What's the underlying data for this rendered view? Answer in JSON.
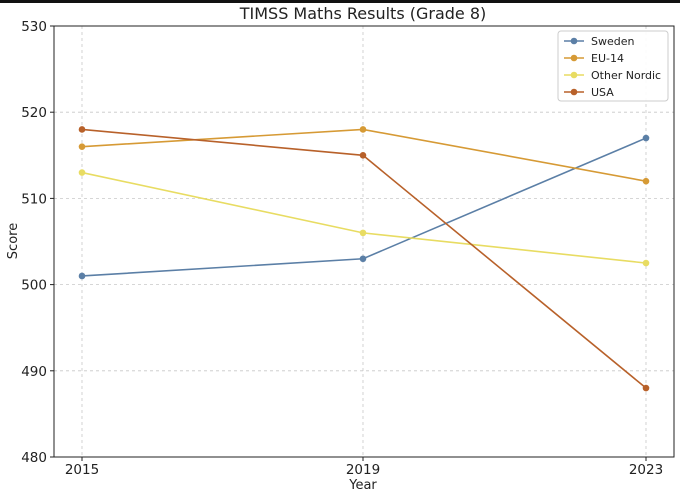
{
  "chart_data": {
    "type": "line",
    "title": "TIMSS Maths Results (Grade 8)",
    "xlabel": "Year",
    "ylabel": "Score",
    "x": [
      2015,
      2019,
      2023
    ],
    "x_tick_labels": [
      "2015",
      "2019",
      "2023"
    ],
    "ylim": [
      480,
      530
    ],
    "y_ticks": [
      480,
      490,
      500,
      510,
      520,
      530
    ],
    "y_tick_labels": [
      "480",
      "490",
      "500",
      "510",
      "520",
      "530"
    ],
    "grid": true,
    "legend_position": "top-right",
    "series": [
      {
        "name": "Sweden",
        "color": "#5b7fa6",
        "values": [
          501,
          503,
          517
        ]
      },
      {
        "name": "EU-14",
        "color": "#d69a35",
        "values": [
          516,
          518,
          512
        ]
      },
      {
        "name": "Other Nordic",
        "color": "#e8dc62",
        "values": [
          513,
          506,
          502.5
        ]
      },
      {
        "name": "USA",
        "color": "#b8612a",
        "values": [
          518,
          515,
          488
        ]
      }
    ]
  }
}
